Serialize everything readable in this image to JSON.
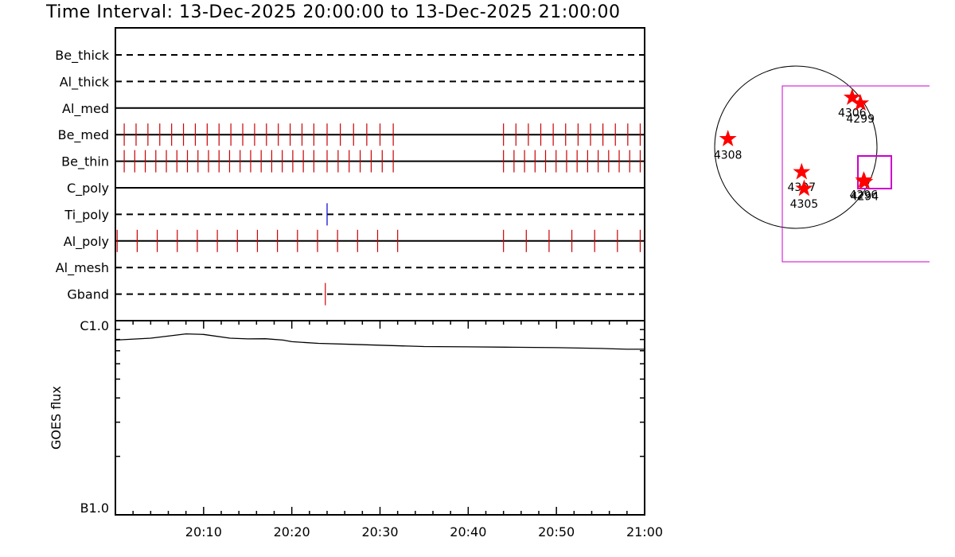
{
  "title": "Time Interval: 13-Dec-2025 20:00:00 to 13-Dec-2025 21:00:00",
  "colors": {
    "axis": "#000000",
    "be_tick": "#cc0000",
    "ti_tick": "#0000cc",
    "star": "#ff0000",
    "fov_box": "#cc00cc"
  },
  "chart_data": [
    {
      "type": "timeline",
      "time_range_minutes": [
        0,
        60
      ],
      "filters": [
        {
          "name": "Be_thick",
          "style": "dashed",
          "ticks": []
        },
        {
          "name": "Al_thick",
          "style": "dashed",
          "ticks": []
        },
        {
          "name": "Al_med",
          "style": "solid",
          "ticks": []
        },
        {
          "name": "Be_med",
          "style": "solid",
          "tick_color": "be_tick",
          "tick_spans": [
            [
              1.0,
              22.5,
              47
            ],
            [
              24.0,
              31.5,
              47
            ],
            [
              44.0,
              59.5,
              47
            ]
          ]
        },
        {
          "name": "Be_thin",
          "style": "solid",
          "tick_color": "be_tick",
          "tick_spans": [
            [
              1.0,
              22.5,
              53
            ],
            [
              24.0,
              31.5,
              53
            ],
            [
              44.0,
              59.5,
              53
            ]
          ]
        },
        {
          "name": "C_poly",
          "style": "solid",
          "ticks": []
        },
        {
          "name": "Ti_poly",
          "style": "dashed",
          "tick_color": "ti_tick",
          "ticks": [
            24.0
          ]
        },
        {
          "name": "Al_poly",
          "style": "solid",
          "tick_color": "be_tick",
          "tick_spans": [
            [
              0.2,
              32.0,
              28
            ],
            [
              44.0,
              59.5,
              28
            ]
          ]
        },
        {
          "name": "Al_mesh",
          "style": "dashed",
          "ticks": []
        },
        {
          "name": "Gband",
          "style": "dashed",
          "tick_color": "be_tick",
          "ticks": [
            23.8
          ]
        }
      ]
    },
    {
      "type": "line",
      "ylabel": "GOES flux",
      "y_tick_labels": [
        "C1.0",
        "B1.0"
      ],
      "y_range_log": [
        -7,
        -6
      ],
      "x_tick_labels": [
        "20:10",
        "20:20",
        "20:30",
        "20:40",
        "20:50",
        "21:00"
      ],
      "x_tick_minutes": [
        10,
        20,
        30,
        40,
        50,
        60
      ],
      "x_minutes": [
        0,
        4,
        8,
        10,
        13,
        15,
        17,
        19,
        20,
        23,
        27,
        31,
        35,
        40,
        45,
        50,
        55,
        58,
        60
      ],
      "log_flux": [
        -6.1,
        -6.09,
        -6.068,
        -6.071,
        -6.09,
        -6.094,
        -6.093,
        -6.1,
        -6.108,
        -6.117,
        -6.122,
        -6.128,
        -6.133,
        -6.135,
        -6.137,
        -6.139,
        -6.143,
        -6.147,
        -6.147
      ]
    },
    {
      "type": "scatter",
      "description_free": true,
      "disk": {
        "cx": 1000,
        "cy": 185,
        "r": 102
      },
      "active_regions": [
        {
          "label": "4308",
          "x": -820,
          "y": 100
        },
        {
          "label": "4307",
          "x": 70,
          "y": -300
        },
        {
          "label": "4305",
          "x": 100,
          "y": -500
        },
        {
          "label": "4306",
          "x": 680,
          "y": 600
        },
        {
          "label": "4299",
          "x": 780,
          "y": 530
        },
        {
          "label": "4296",
          "x": 820,
          "y": -400
        },
        {
          "label": "4294",
          "x": 830,
          "y": -420
        }
      ]
    }
  ]
}
